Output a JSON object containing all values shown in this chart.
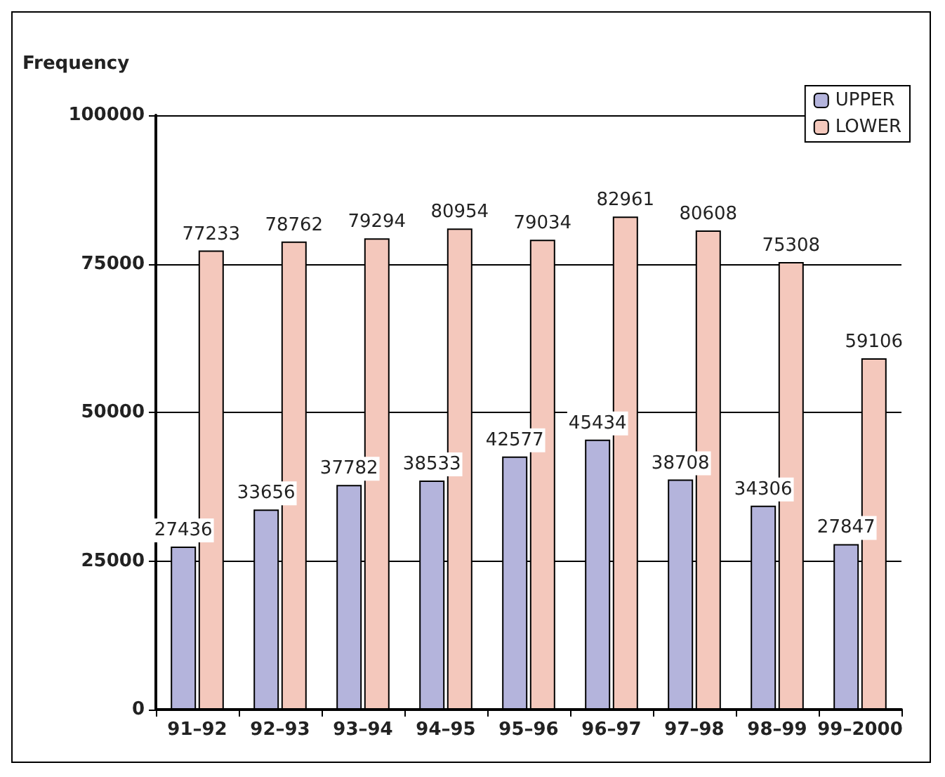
{
  "chart_data": {
    "type": "bar",
    "ylabel": "Frequency",
    "categories": [
      "91–92",
      "92–93",
      "93–94",
      "94–95",
      "95–96",
      "96–97",
      "97–98",
      "98–99",
      "99–2000"
    ],
    "series": [
      {
        "name": "UPPER",
        "color": "#b4b4dc",
        "values": [
          27436,
          33656,
          37782,
          38533,
          42577,
          45434,
          38708,
          34306,
          27847
        ]
      },
      {
        "name": "LOWER",
        "color": "#f4c8bc",
        "values": [
          77233,
          78762,
          79294,
          80954,
          79034,
          82961,
          80608,
          75308,
          59106
        ]
      }
    ],
    "ylim": [
      0,
      100000
    ],
    "yticks": [
      0,
      25000,
      50000,
      75000,
      100000
    ],
    "grid": "y",
    "legend": "top right",
    "data_labels": true
  }
}
